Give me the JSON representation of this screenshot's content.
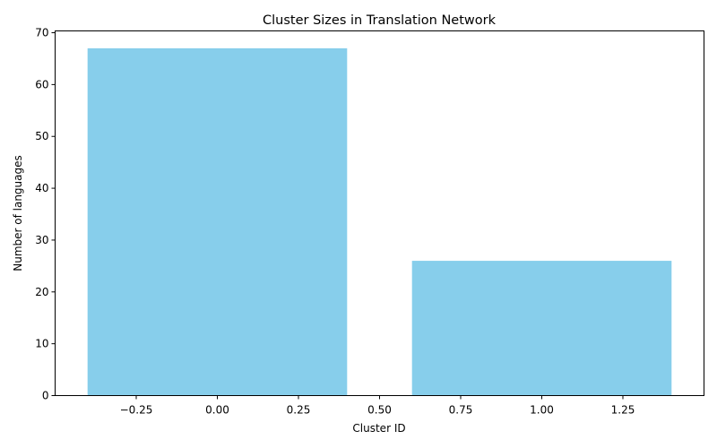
{
  "chart_data": {
    "type": "bar",
    "title": "Cluster Sizes in Translation Network",
    "xlabel": "Cluster ID",
    "ylabel": "Number of languages",
    "bars": [
      {
        "x": 0,
        "width": 0.8,
        "value": 67
      },
      {
        "x": 1,
        "width": 0.8,
        "value": 26
      }
    ],
    "xlim": [
      -0.5,
      1.5
    ],
    "ylim": [
      0,
      70.35
    ],
    "xticks": [
      -0.25,
      0.0,
      0.25,
      0.5,
      0.75,
      1.0,
      1.25
    ],
    "xtick_labels": [
      "−0.25",
      "0.00",
      "0.25",
      "0.50",
      "0.75",
      "1.00",
      "1.25"
    ],
    "yticks": [
      0,
      10,
      20,
      30,
      40,
      50,
      60,
      70
    ],
    "ytick_labels": [
      "0",
      "10",
      "20",
      "30",
      "40",
      "50",
      "60",
      "70"
    ],
    "bar_color": "#87CEEB",
    "grid": false
  }
}
